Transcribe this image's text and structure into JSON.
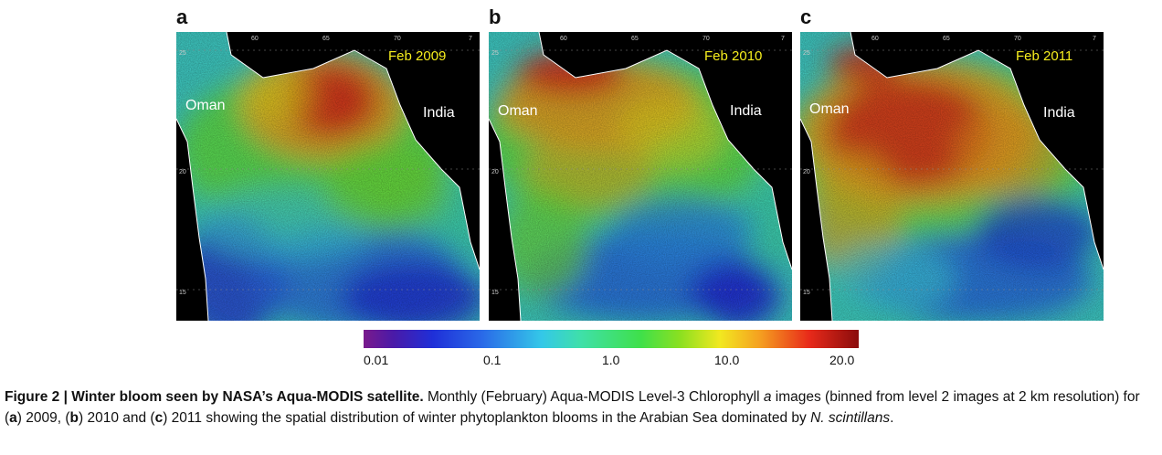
{
  "panels": [
    {
      "letter": "a",
      "date": "Feb 2009",
      "left_region": "Oman",
      "right_region": "India",
      "ticks_top": [
        "60",
        "65",
        "70",
        "7"
      ],
      "ticks_left": [
        "25",
        "20",
        "15"
      ]
    },
    {
      "letter": "b",
      "date": "Feb 2010",
      "left_region": "Oman",
      "right_region": "India",
      "ticks_top": [
        "60",
        "65",
        "70",
        "7"
      ],
      "ticks_left": [
        "25",
        "20",
        "15"
      ]
    },
    {
      "letter": "c",
      "date": "Feb 2011",
      "left_region": "Oman",
      "right_region": "India",
      "ticks_top": [
        "60",
        "65",
        "70",
        "7"
      ],
      "ticks_left": [
        "25",
        "20",
        "15"
      ]
    }
  ],
  "colorbar": {
    "labels": [
      "0.01",
      "0.1",
      "1.0",
      "10.0",
      "20.0"
    ],
    "colors": [
      "#7a1a8c",
      "#1f2fd8",
      "#34c8e8",
      "#3fe04a",
      "#f2e820",
      "#e82a1a",
      "#8a0c0c"
    ]
  },
  "caption": {
    "title": "Figure 2 | Winter bloom seen by NASA’s Aqua-MODIS satellite.",
    "text_1": " Monthly (February) Aqua-MODIS Level-3 Chlorophyll ",
    "italic_a": "a",
    "text_2": " images (binned from level 2 images at 2 km resolution) for (",
    "a_label": "a",
    "text_3": ") 2009, (",
    "b_label": "b",
    "text_4": ") 2010 and (",
    "c_label": "c",
    "text_5": ") 2011 showing the spatial distribution of winter phytoplankton blooms in the Arabian Sea dominated by ",
    "species": "N. scintillans",
    "text_6": "."
  }
}
